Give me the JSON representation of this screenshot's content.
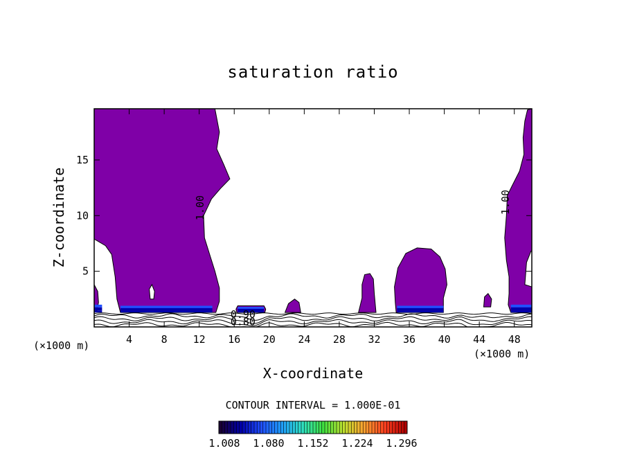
{
  "chart_data": {
    "type": "heatmap",
    "title": "saturation ratio",
    "xlabel": "X-coordinate",
    "ylabel": "Z-coordinate",
    "x_unit_left": "(×1000 m)",
    "x_unit_right": "(×1000 m)",
    "xlim": [
      0,
      50
    ],
    "ylim": [
      0,
      19.6
    ],
    "x_ticks": [
      4,
      8,
      12,
      16,
      20,
      24,
      28,
      32,
      36,
      40,
      44,
      48
    ],
    "y_ticks": [
      5,
      10,
      15
    ],
    "contour_interval_text": "CONTOUR INTERVAL = 1.000E-01",
    "contour_labels": [
      {
        "text": "1.00",
        "x": 12.5,
        "z": 10.7
      },
      {
        "text": "1.00",
        "x": 47.4,
        "z": 11.2
      },
      {
        "text": "0.90",
        "x": 17.0,
        "z": 0.8
      },
      {
        "text": "0.80",
        "x": 17.0,
        "z": 0.15
      }
    ],
    "colorbar": {
      "tick_labels": [
        "1.008",
        "1.080",
        "1.152",
        "1.224",
        "1.296"
      ],
      "colors": [
        "#1a0033",
        "#0000aa",
        "#2050ff",
        "#20a0ff",
        "#30e0c0",
        "#40e040",
        "#c0e030",
        "#ffa030",
        "#ff4020",
        "#b00000"
      ]
    },
    "supersaturated_fill_color": "#7f00a7",
    "regions": [
      {
        "name": "left column",
        "polygon": [
          [
            0,
            19.6
          ],
          [
            13.8,
            19.6
          ],
          [
            14.3,
            17.5
          ],
          [
            14.0,
            16
          ],
          [
            14.8,
            14.6
          ],
          [
            15.5,
            13.3
          ],
          [
            14.5,
            12.5
          ],
          [
            13.4,
            11.5
          ],
          [
            12.5,
            10
          ],
          [
            12.6,
            8
          ],
          [
            13.2,
            6.5
          ],
          [
            13.8,
            5
          ],
          [
            14.3,
            3.5
          ],
          [
            14.3,
            2.3
          ],
          [
            13.9,
            1.3
          ],
          [
            3.0,
            1.3
          ],
          [
            2.6,
            2.5
          ],
          [
            2.4,
            4.5
          ],
          [
            2.0,
            6.5
          ],
          [
            1.3,
            7.3
          ],
          [
            0,
            7.9
          ]
        ]
      },
      {
        "name": "left edge sliver",
        "polygon": [
          [
            0,
            3.8
          ],
          [
            0.4,
            3.2
          ],
          [
            0.5,
            2.2
          ],
          [
            0.3,
            1.4
          ],
          [
            0,
            1.3
          ]
        ]
      },
      {
        "name": "right column",
        "polygon": [
          [
            50,
            19.6
          ],
          [
            49.5,
            19.5
          ],
          [
            49.2,
            18.5
          ],
          [
            49.0,
            17
          ],
          [
            49.1,
            15.5
          ],
          [
            48.6,
            14
          ],
          [
            47.7,
            12.6
          ],
          [
            47.2,
            11.8
          ],
          [
            47.1,
            10
          ],
          [
            46.9,
            8
          ],
          [
            47.1,
            6
          ],
          [
            47.4,
            4.5
          ],
          [
            47.4,
            3
          ],
          [
            47.3,
            2
          ],
          [
            47.6,
            1.3
          ],
          [
            50,
            1.3
          ]
        ]
      },
      {
        "name": "shallow cloud 18",
        "polygon": [
          [
            16.2,
            1.6
          ],
          [
            16.4,
            1.9
          ],
          [
            19.4,
            1.9
          ],
          [
            19.6,
            1.6
          ],
          [
            19.5,
            1.3
          ],
          [
            16.3,
            1.3
          ]
        ]
      },
      {
        "name": "small cloud 22",
        "polygon": [
          [
            21.8,
            1.3
          ],
          [
            22.2,
            2.1
          ],
          [
            22.9,
            2.5
          ],
          [
            23.4,
            2.2
          ],
          [
            23.6,
            1.3
          ]
        ]
      },
      {
        "name": "narrow cloud 31",
        "polygon": [
          [
            30.2,
            1.3
          ],
          [
            30.6,
            2.6
          ],
          [
            30.6,
            3.8
          ],
          [
            30.9,
            4.7
          ],
          [
            31.5,
            4.8
          ],
          [
            31.9,
            4.3
          ],
          [
            32.0,
            3
          ],
          [
            32.2,
            1.3
          ]
        ]
      },
      {
        "name": "round cloud 37",
        "polygon": [
          [
            34.5,
            1.3
          ],
          [
            34.4,
            2.2
          ],
          [
            34.3,
            3.6
          ],
          [
            34.7,
            5.3
          ],
          [
            35.6,
            6.6
          ],
          [
            36.9,
            7.1
          ],
          [
            38.5,
            7.0
          ],
          [
            39.5,
            6.3
          ],
          [
            40.1,
            5.2
          ],
          [
            40.3,
            3.8
          ],
          [
            39.9,
            2.6
          ],
          [
            39.9,
            1.3
          ]
        ]
      },
      {
        "name": "small cloud 45",
        "polygon": [
          [
            44.5,
            1.8
          ],
          [
            44.6,
            2.7
          ],
          [
            45.0,
            3.0
          ],
          [
            45.4,
            2.5
          ],
          [
            45.3,
            1.8
          ]
        ]
      }
    ],
    "holes": [
      {
        "name": "hole in left column",
        "polygon": [
          [
            6.4,
            2.5
          ],
          [
            6.3,
            3.4
          ],
          [
            6.6,
            3.8
          ],
          [
            6.9,
            3.2
          ],
          [
            6.8,
            2.5
          ]
        ]
      },
      {
        "name": "hole in right column",
        "polygon": [
          [
            49.2,
            3.8
          ],
          [
            49.4,
            5.8
          ],
          [
            49.9,
            6.8
          ],
          [
            50,
            6.8
          ],
          [
            50,
            3.6
          ]
        ]
      }
    ],
    "high_value_bands": [
      {
        "x0": 3.0,
        "x1": 13.5,
        "z0": 1.3,
        "z1": 1.9,
        "level": 1.05
      },
      {
        "x0": 0.0,
        "x1": 0.9,
        "z0": 1.3,
        "z1": 2.0,
        "level": 1.05
      },
      {
        "x0": 16.4,
        "x1": 19.4,
        "z0": 1.3,
        "z1": 1.8,
        "level": 1.03
      },
      {
        "x0": 34.6,
        "x1": 39.9,
        "z0": 1.3,
        "z1": 1.9,
        "level": 1.05
      },
      {
        "x0": 47.6,
        "x1": 50.0,
        "z0": 1.3,
        "z1": 2.0,
        "level": 1.05
      }
    ],
    "subsaturated_contour_levels": [
      0.6,
      0.7,
      0.8,
      0.9
    ]
  }
}
